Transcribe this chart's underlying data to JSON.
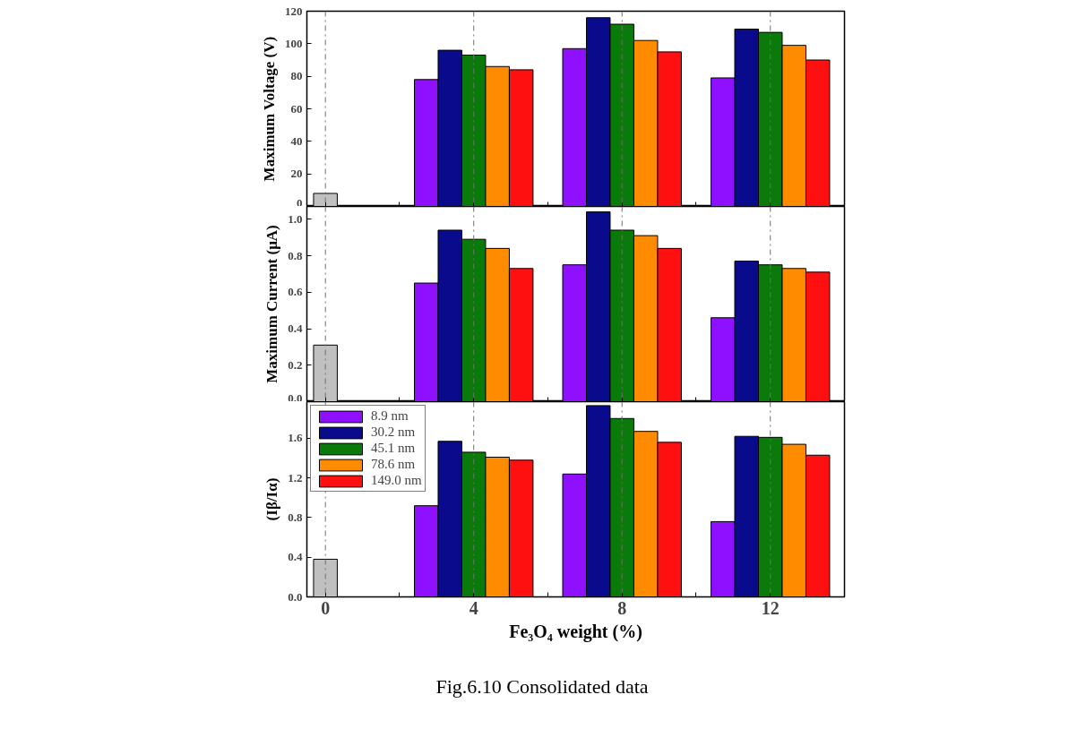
{
  "chart_data": [
    {
      "type": "bar",
      "ylabel": "Maximum Voltage (V)",
      "x": [
        0,
        4,
        8,
        12
      ],
      "xlim": [
        -0.5,
        14
      ],
      "xticks": [
        {
          "value": 0,
          "label": null
        },
        {
          "value": 2,
          "label": null
        },
        {
          "value": 4,
          "label": null
        },
        {
          "value": 6,
          "label": null
        },
        {
          "value": 8,
          "label": null
        },
        {
          "value": 10,
          "label": null
        },
        {
          "value": 12,
          "label": null
        }
      ],
      "ylim": [
        0,
        120
      ],
      "yticks": [
        0,
        20,
        40,
        60,
        80,
        100,
        120
      ],
      "tick_labels": "y",
      "grid": false,
      "legend": false,
      "ref_lines": [
        {
          "axis": "x",
          "value": 0,
          "color": "#707070",
          "line_style": "dashdot"
        },
        {
          "axis": "x",
          "value": 4,
          "color": "#707070",
          "line_style": "dashdot"
        },
        {
          "axis": "x",
          "value": 8,
          "color": "#707070",
          "line_style": "dashdot"
        },
        {
          "axis": "x",
          "value": 12,
          "color": "#707070",
          "line_style": "dashdot"
        }
      ],
      "series": [
        {
          "color": "#c0c0c0",
          "values": [
            8,
            null,
            null,
            null
          ]
        },
        {
          "color": "#8f10ff",
          "values": [
            null,
            78,
            97,
            79
          ]
        },
        {
          "color": "#0a0a8c",
          "values": [
            null,
            96,
            116,
            109
          ]
        },
        {
          "color": "#0a7a0a",
          "values": [
            null,
            93,
            112,
            107
          ]
        },
        {
          "color": "#ff8c00",
          "values": [
            null,
            86,
            102,
            99
          ]
        },
        {
          "color": "#ff1010",
          "values": [
            null,
            84,
            95,
            90
          ]
        }
      ]
    },
    {
      "type": "bar",
      "ylabel": "Maximum Current (μA)",
      "x": [
        0,
        4,
        8,
        12
      ],
      "xlim": [
        -0.5,
        14
      ],
      "xticks": [
        {
          "value": 0,
          "label": null
        },
        {
          "value": 2,
          "label": null
        },
        {
          "value": 4,
          "label": null
        },
        {
          "value": 6,
          "label": null
        },
        {
          "value": 8,
          "label": null
        },
        {
          "value": 10,
          "label": null
        },
        {
          "value": 12,
          "label": null
        }
      ],
      "ylim": [
        0,
        1.07
      ],
      "yticks": [
        {
          "value": 0,
          "label": "0.0"
        },
        {
          "value": 0.2,
          "label": "0.2"
        },
        {
          "value": 0.4,
          "label": "0.4"
        },
        {
          "value": 0.6,
          "label": "0.6"
        },
        {
          "value": 0.8,
          "label": "0.8"
        },
        {
          "value": 1.0,
          "label": "1.0"
        }
      ],
      "tick_labels": "y",
      "grid": false,
      "legend": false,
      "ref_lines": [
        {
          "axis": "x",
          "value": 0,
          "color": "#707070",
          "line_style": "dashdot"
        },
        {
          "axis": "x",
          "value": 4,
          "color": "#707070",
          "line_style": "dashdot"
        },
        {
          "axis": "x",
          "value": 8,
          "color": "#707070",
          "line_style": "dashdot"
        },
        {
          "axis": "x",
          "value": 12,
          "color": "#707070",
          "line_style": "dashdot"
        }
      ],
      "series": [
        {
          "color": "#c0c0c0",
          "values": [
            0.31,
            null,
            null,
            null
          ]
        },
        {
          "color": "#8f10ff",
          "values": [
            null,
            0.65,
            0.75,
            0.46
          ]
        },
        {
          "color": "#0a0a8c",
          "values": [
            null,
            0.94,
            1.04,
            0.77
          ]
        },
        {
          "color": "#0a7a0a",
          "values": [
            null,
            0.89,
            0.94,
            0.75
          ]
        },
        {
          "color": "#ff8c00",
          "values": [
            null,
            0.84,
            0.91,
            0.73
          ]
        },
        {
          "color": "#ff1010",
          "values": [
            null,
            0.73,
            0.84,
            0.71
          ]
        }
      ]
    },
    {
      "type": "bar",
      "ylabel": "(Iβ/Iα)",
      "xlabel": "Fe₃O₄ weight (%)",
      "x": [
        0,
        4,
        8,
        12
      ],
      "xlim": [
        -0.5,
        14
      ],
      "xticks": [
        {
          "value": 0,
          "label": "0"
        },
        {
          "value": 2,
          "label": null
        },
        {
          "value": 4,
          "label": "4"
        },
        {
          "value": 6,
          "label": null
        },
        {
          "value": 8,
          "label": "8"
        },
        {
          "value": 10,
          "label": null
        },
        {
          "value": 12,
          "label": "12"
        }
      ],
      "ylim": [
        0,
        1.97
      ],
      "yticks": [
        {
          "value": 0,
          "label": "0.0"
        },
        {
          "value": 0.4,
          "label": "0.4"
        },
        {
          "value": 0.8,
          "label": "0.8"
        },
        {
          "value": 1.2,
          "label": "1.2"
        },
        {
          "value": 1.6,
          "label": "1.6"
        }
      ],
      "grid": false,
      "legend": "top left",
      "annotations": [
        "Fig.6.10 Consolidated data"
      ],
      "ref_lines": [
        {
          "axis": "x",
          "value": 0,
          "color": "#707070",
          "line_style": "dashdot"
        },
        {
          "axis": "x",
          "value": 4,
          "color": "#707070",
          "line_style": "dashdot"
        },
        {
          "axis": "x",
          "value": 8,
          "color": "#707070",
          "line_style": "dashdot"
        },
        {
          "axis": "x",
          "value": 12,
          "color": "#707070",
          "line_style": "dashdot"
        }
      ],
      "series": [
        {
          "color": "#c0c0c0",
          "values": [
            0.38,
            null,
            null,
            null
          ]
        },
        {
          "name": "8.9 nm",
          "color": "#8f10ff",
          "values": [
            null,
            0.92,
            1.24,
            0.76
          ]
        },
        {
          "name": "30.2 nm",
          "color": "#0a0a8c",
          "values": [
            null,
            1.57,
            1.93,
            1.62
          ]
        },
        {
          "name": "45.1 nm",
          "color": "#0a7a0a",
          "values": [
            null,
            1.46,
            1.8,
            1.61
          ]
        },
        {
          "name": "78.6 nm",
          "color": "#ff8c00",
          "values": [
            null,
            1.41,
            1.67,
            1.54
          ]
        },
        {
          "name": "149.0 nm",
          "color": "#ff1010",
          "values": [
            null,
            1.38,
            1.56,
            1.43
          ]
        }
      ]
    }
  ]
}
